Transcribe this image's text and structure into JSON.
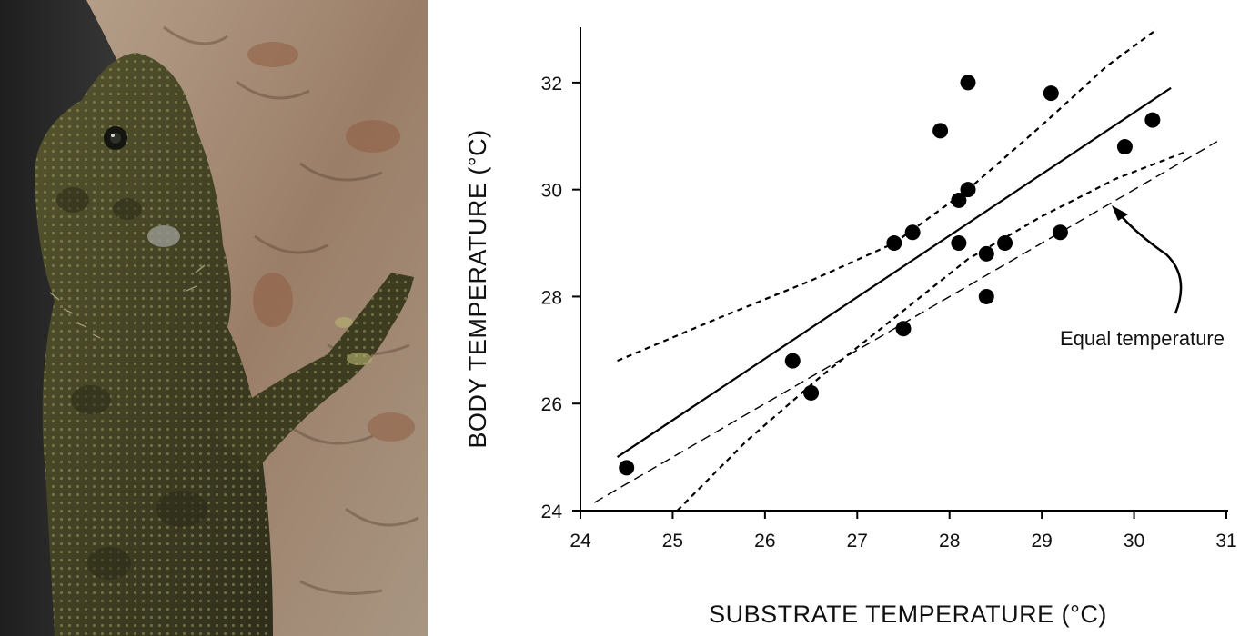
{
  "photo": {
    "subject": "lizard-on-tree-bark",
    "colors": {
      "lizard": "#4a4a26",
      "bark": "#a08872",
      "background": "#2a2a2a"
    }
  },
  "chart_data": {
    "type": "scatter",
    "xlabel": "SUBSTRATE TEMPERATURE (°C)",
    "ylabel": "BODY TEMPERATURE (°C)",
    "xlim": [
      24,
      31
    ],
    "ylim": [
      24,
      33
    ],
    "x_ticks": [
      24,
      25,
      26,
      27,
      28,
      29,
      30,
      31
    ],
    "y_ticks": [
      24,
      26,
      28,
      30,
      32
    ],
    "grid": false,
    "points": [
      {
        "x": 24.5,
        "y": 24.8
      },
      {
        "x": 26.3,
        "y": 26.8
      },
      {
        "x": 26.5,
        "y": 26.2
      },
      {
        "x": 27.4,
        "y": 29.0
      },
      {
        "x": 27.5,
        "y": 27.4
      },
      {
        "x": 27.6,
        "y": 29.2
      },
      {
        "x": 27.9,
        "y": 31.1
      },
      {
        "x": 28.1,
        "y": 29.8
      },
      {
        "x": 28.1,
        "y": 29.0
      },
      {
        "x": 28.2,
        "y": 32.0
      },
      {
        "x": 28.2,
        "y": 30.0
      },
      {
        "x": 28.4,
        "y": 28.8
      },
      {
        "x": 28.4,
        "y": 28.0
      },
      {
        "x": 28.6,
        "y": 29.0
      },
      {
        "x": 29.1,
        "y": 31.8
      },
      {
        "x": 29.2,
        "y": 29.2
      },
      {
        "x": 29.9,
        "y": 30.8
      },
      {
        "x": 30.2,
        "y": 31.3
      }
    ],
    "regression_line": [
      [
        24.4,
        25.0
      ],
      [
        30.4,
        31.9
      ]
    ],
    "confidence_upper": [
      [
        24.4,
        26.8
      ],
      [
        25.5,
        27.6
      ],
      [
        26.5,
        28.3
      ],
      [
        27.4,
        29.0
      ],
      [
        28.2,
        30.0
      ],
      [
        29.0,
        31.2
      ],
      [
        29.7,
        32.3
      ],
      [
        30.25,
        33.0
      ]
    ],
    "confidence_lower": [
      [
        25.05,
        24.0
      ],
      [
        25.8,
        25.3
      ],
      [
        26.6,
        26.5
      ],
      [
        27.4,
        27.6
      ],
      [
        28.2,
        28.7
      ],
      [
        29.0,
        29.5
      ],
      [
        29.8,
        30.2
      ],
      [
        30.55,
        30.7
      ]
    ],
    "equality_line": [
      [
        24.15,
        24.15
      ],
      [
        30.9,
        30.9
      ]
    ],
    "annotation": "Equal temperature",
    "colors": {
      "ink": "#000000",
      "background": "#ffffff"
    }
  }
}
